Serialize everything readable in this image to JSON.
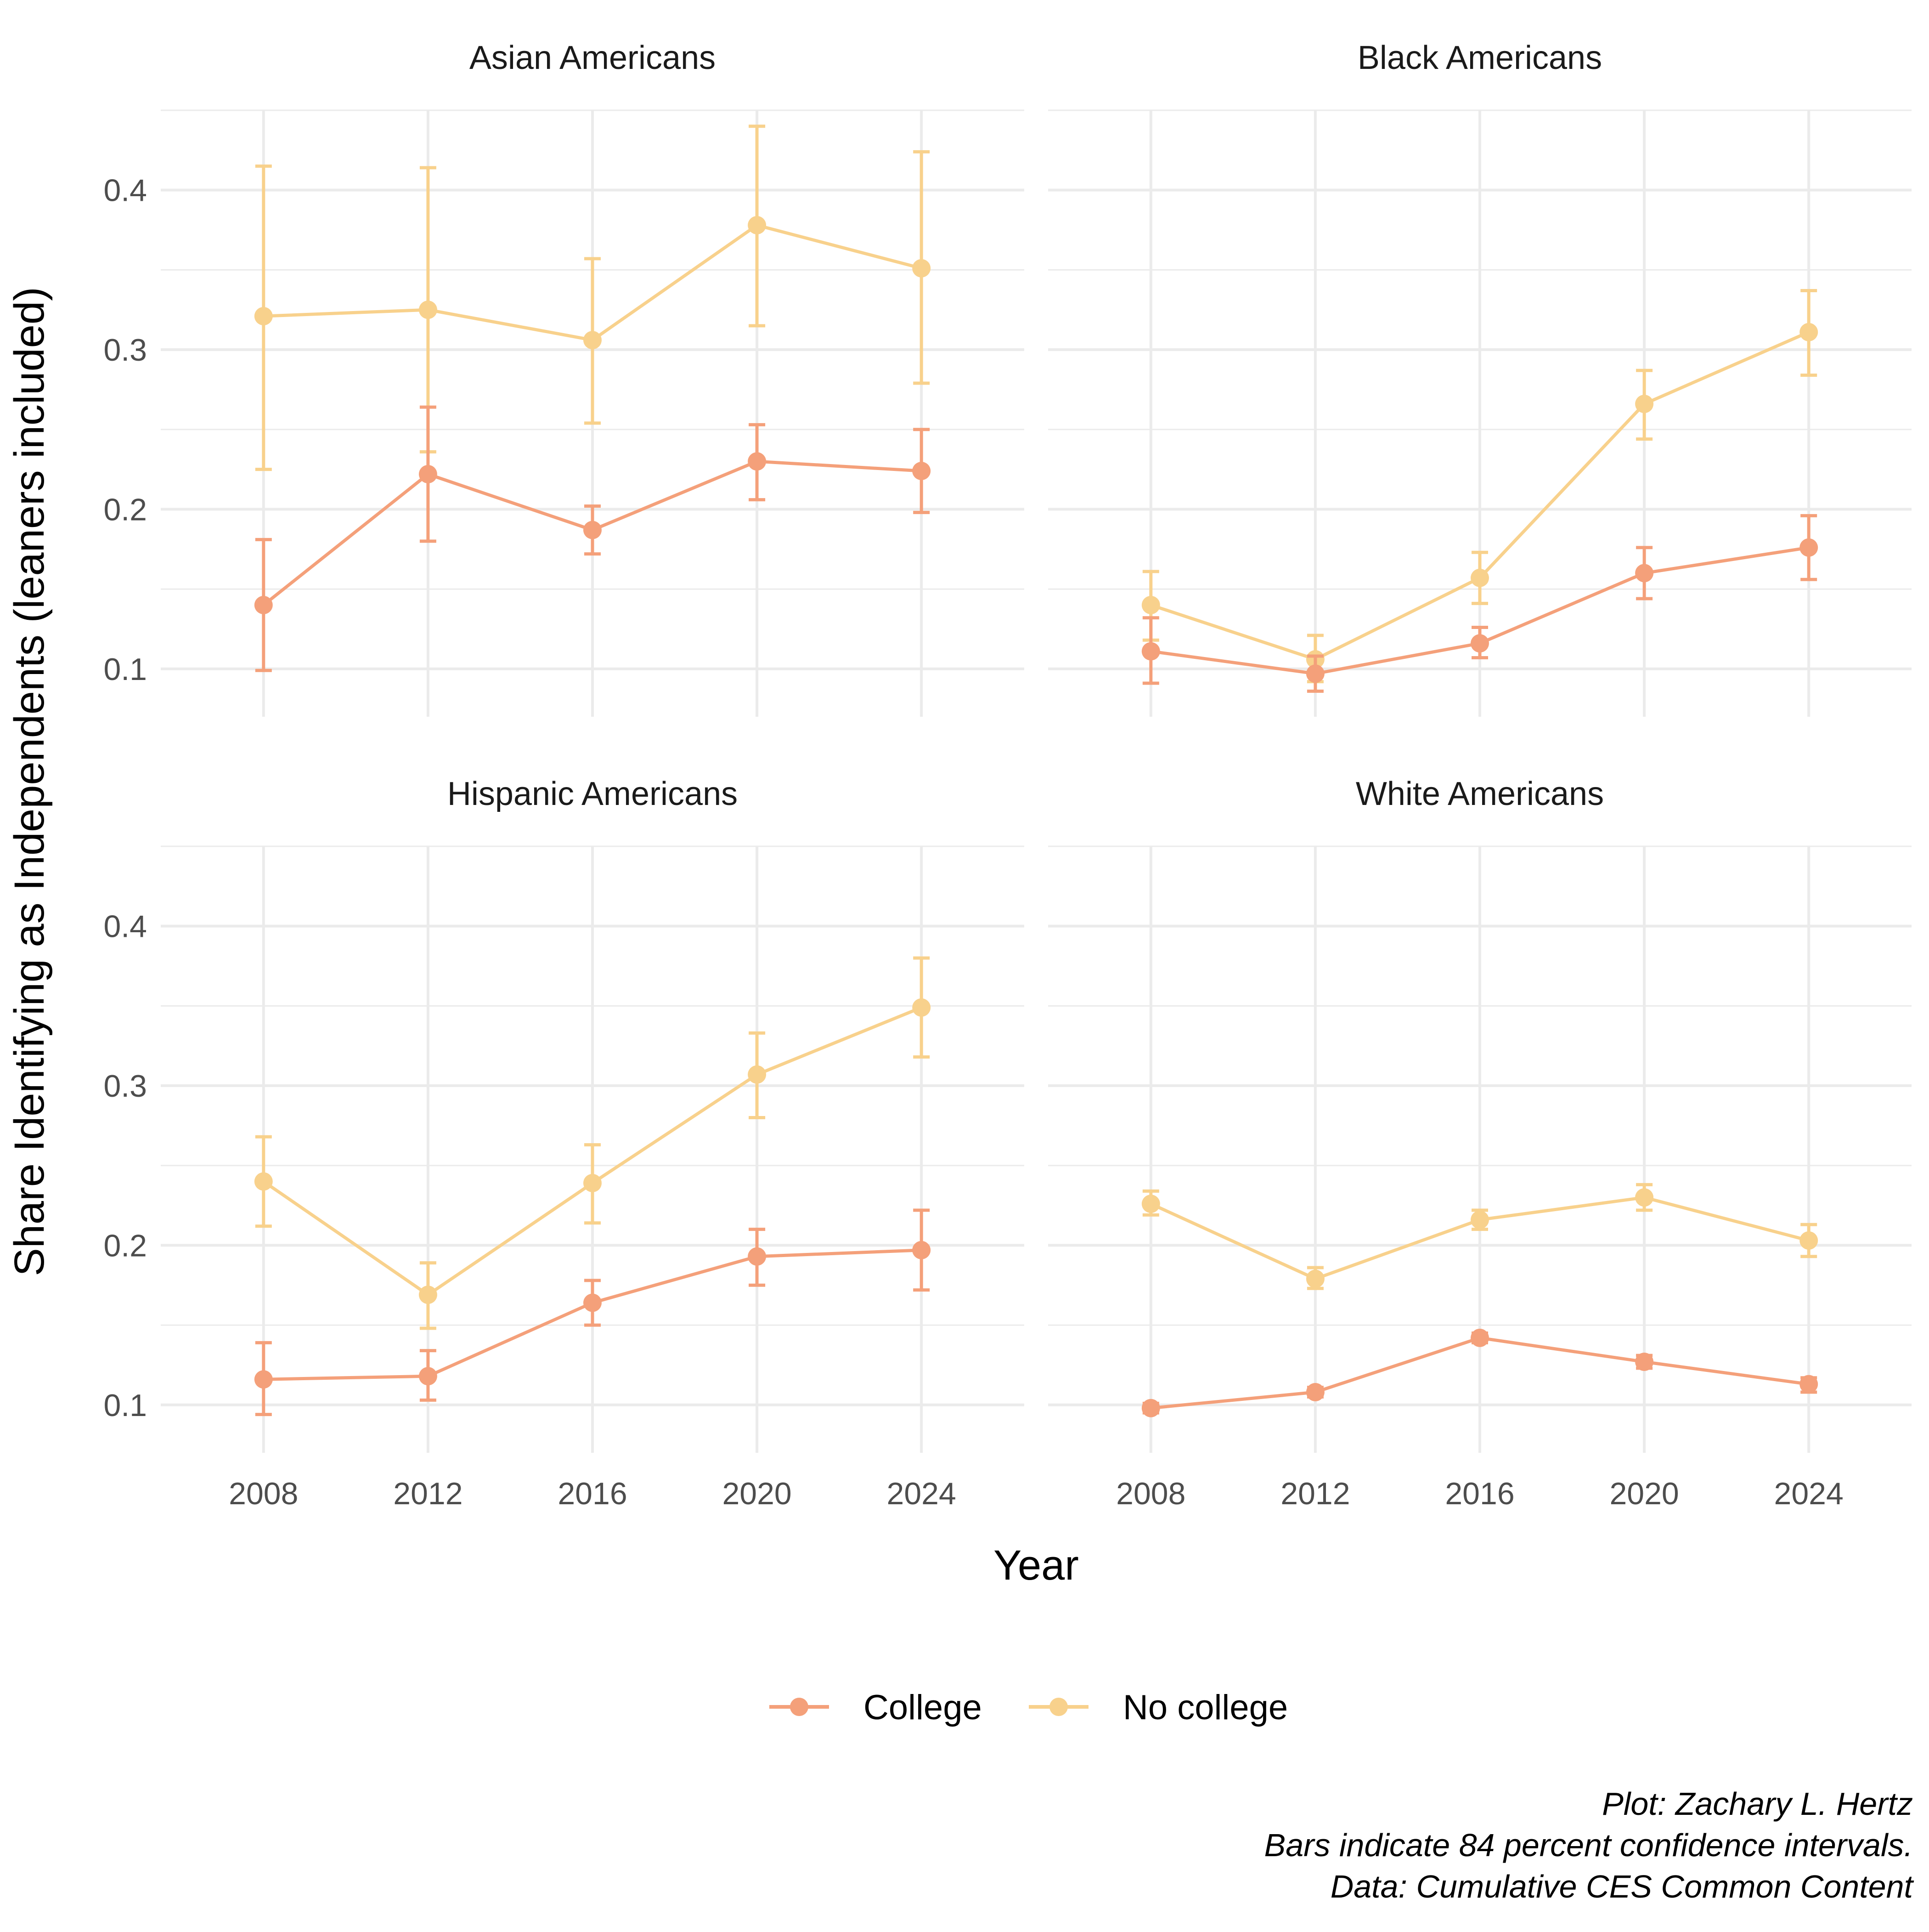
{
  "chart_data": {
    "type": "line",
    "xlabel": "Year",
    "ylabel": "Share Identifying as Independents (leaners included)",
    "x_ticks": [
      2008,
      2012,
      2016,
      2020,
      2024
    ],
    "y_ticks": [
      0.1,
      0.2,
      0.3,
      0.4
    ],
    "y_tick_labels": [
      "0.1",
      "0.2",
      "0.3",
      "0.4"
    ],
    "x_tick_labels": [
      "2008",
      "2012",
      "2016",
      "2020",
      "2024"
    ],
    "xlim": [
      2005.5,
      2026.5
    ],
    "ylim": [
      0.07,
      0.45
    ],
    "grid": true,
    "legend_position": "bottom",
    "legend": [
      {
        "name": "College",
        "color": "#F4A07A"
      },
      {
        "name": "No college",
        "color": "#F8D18C"
      }
    ],
    "captions": [
      "Plot: Zachary L. Hertz",
      "Bars indicate 84 percent confidence intervals.",
      "Data: Cumulative CES Common Content"
    ],
    "panels": [
      {
        "title": "Asian Americans",
        "series": [
          {
            "name": "College",
            "x": [
              2008,
              2012,
              2016,
              2020,
              2024
            ],
            "y": [
              0.14,
              0.222,
              0.187,
              0.23,
              0.224
            ],
            "low": [
              0.099,
              0.18,
              0.172,
              0.206,
              0.198
            ],
            "high": [
              0.181,
              0.264,
              0.202,
              0.253,
              0.25
            ]
          },
          {
            "name": "No college",
            "x": [
              2008,
              2012,
              2016,
              2020,
              2024
            ],
            "y": [
              0.321,
              0.325,
              0.306,
              0.378,
              0.351
            ],
            "low": [
              0.225,
              0.236,
              0.254,
              0.315,
              0.279
            ],
            "high": [
              0.415,
              0.414,
              0.357,
              0.44,
              0.424
            ]
          }
        ]
      },
      {
        "title": "Black Americans",
        "series": [
          {
            "name": "College",
            "x": [
              2008,
              2012,
              2016,
              2020,
              2024
            ],
            "y": [
              0.111,
              0.097,
              0.116,
              0.16,
              0.176
            ],
            "low": [
              0.091,
              0.086,
              0.107,
              0.144,
              0.156
            ],
            "high": [
              0.132,
              0.108,
              0.126,
              0.176,
              0.196
            ]
          },
          {
            "name": "No college",
            "x": [
              2008,
              2012,
              2016,
              2020,
              2024
            ],
            "y": [
              0.14,
              0.106,
              0.157,
              0.266,
              0.311
            ],
            "low": [
              0.118,
              0.092,
              0.141,
              0.244,
              0.284
            ],
            "high": [
              0.161,
              0.121,
              0.173,
              0.287,
              0.337
            ]
          }
        ]
      },
      {
        "title": "Hispanic Americans",
        "series": [
          {
            "name": "College",
            "x": [
              2008,
              2012,
              2016,
              2020,
              2024
            ],
            "y": [
              0.116,
              0.118,
              0.164,
              0.193,
              0.197
            ],
            "low": [
              0.094,
              0.103,
              0.15,
              0.175,
              0.172
            ],
            "high": [
              0.139,
              0.134,
              0.178,
              0.21,
              0.222
            ]
          },
          {
            "name": "No college",
            "x": [
              2008,
              2012,
              2016,
              2020,
              2024
            ],
            "y": [
              0.24,
              0.169,
              0.239,
              0.307,
              0.349
            ],
            "low": [
              0.212,
              0.148,
              0.214,
              0.28,
              0.318
            ],
            "high": [
              0.268,
              0.189,
              0.263,
              0.333,
              0.38
            ]
          }
        ]
      },
      {
        "title": "White Americans",
        "series": [
          {
            "name": "College",
            "x": [
              2008,
              2012,
              2016,
              2020,
              2024
            ],
            "y": [
              0.098,
              0.108,
              0.142,
              0.127,
              0.113
            ],
            "low": [
              0.095,
              0.105,
              0.139,
              0.123,
              0.108
            ],
            "high": [
              0.101,
              0.111,
              0.145,
              0.131,
              0.117
            ]
          },
          {
            "name": "No college",
            "x": [
              2008,
              2012,
              2016,
              2020,
              2024
            ],
            "y": [
              0.226,
              0.179,
              0.216,
              0.23,
              0.203
            ],
            "low": [
              0.219,
              0.173,
              0.21,
              0.222,
              0.193
            ],
            "high": [
              0.234,
              0.186,
              0.222,
              0.238,
              0.213
            ]
          }
        ]
      }
    ]
  }
}
